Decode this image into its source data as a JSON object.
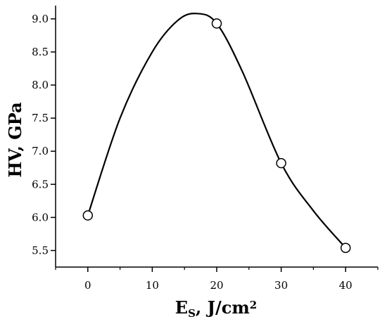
{
  "chart_data": {
    "type": "line",
    "xlabel": {
      "main": "E",
      "sub": "S",
      "rest": ", J/cm",
      "sup": "2"
    },
    "ylabel": "HV, GPa",
    "xlim": [
      -5,
      45
    ],
    "ylim": [
      5.25,
      9.2
    ],
    "xticks": [
      0,
      10,
      20,
      30,
      40
    ],
    "yticks": [
      5.5,
      6.0,
      6.5,
      7.0,
      7.5,
      8.0,
      8.5,
      9.0
    ],
    "xtick_labels": [
      "0",
      "10",
      "20",
      "30",
      "40"
    ],
    "ytick_labels": [
      "5.5",
      "6.0",
      "6.5",
      "7.0",
      "7.5",
      "8.0",
      "8.5",
      "9.0"
    ],
    "markers": {
      "x": [
        0,
        20,
        30,
        40
      ],
      "y": [
        6.03,
        8.93,
        6.82,
        5.54
      ]
    },
    "curve": {
      "x": [
        0,
        5,
        10,
        14,
        17,
        20,
        24,
        30,
        35,
        40
      ],
      "y": [
        6.03,
        7.5,
        8.5,
        8.98,
        9.08,
        8.93,
        8.2,
        6.82,
        6.1,
        5.54
      ]
    },
    "grid": false,
    "legend": "none",
    "colors": {
      "line": "#000000",
      "marker_fill": "#ffffff",
      "marker_edge": "#000000"
    }
  }
}
